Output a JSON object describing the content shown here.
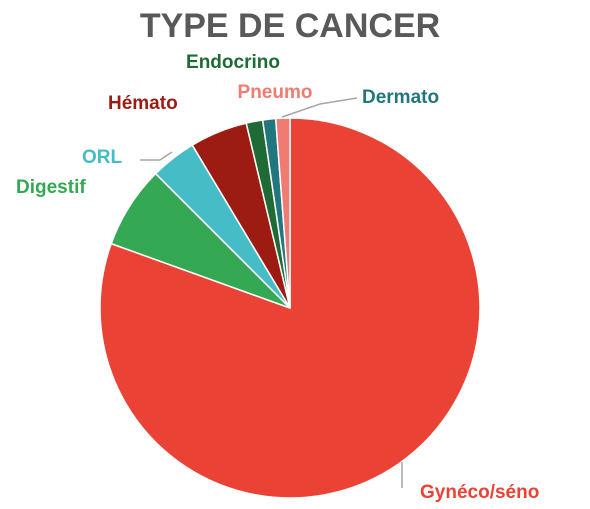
{
  "chart_data": {
    "type": "pie",
    "title": "TYPE DE CANCER",
    "categories": [
      "Gynéco/séno",
      "Digestif",
      "ORL",
      "Hémato",
      "Endocrino",
      "Dermato",
      "Pneumo"
    ],
    "values": [
      80.5,
      7,
      3.9,
      4.9,
      1.4,
      1.1,
      1.2
    ],
    "colors": [
      "#ea4335",
      "#34a853",
      "#46bdc6",
      "#9c1c14",
      "#1e6b35",
      "#22777f",
      "#f07b72"
    ]
  }
}
